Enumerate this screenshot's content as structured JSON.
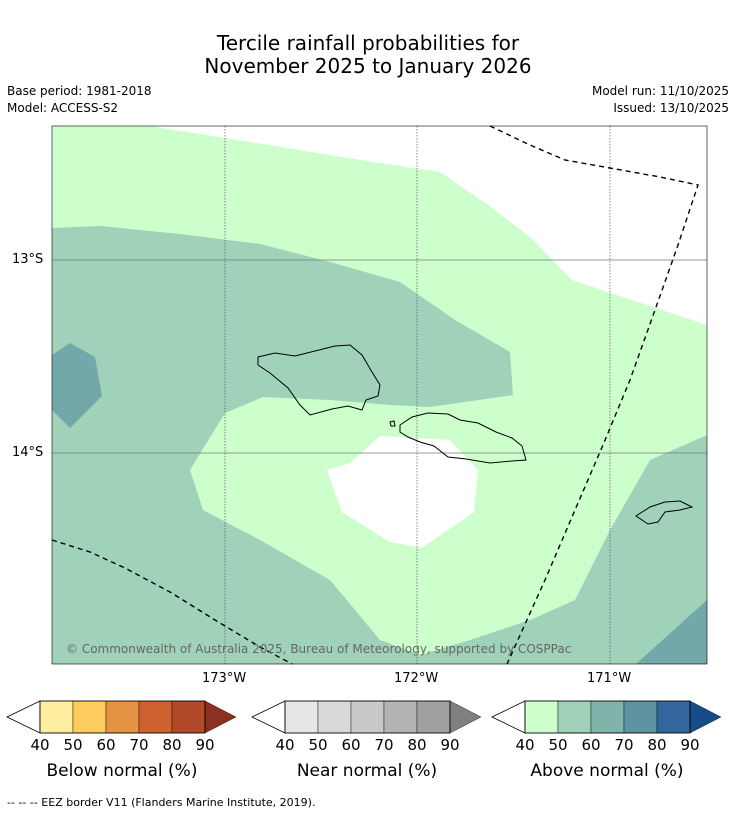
{
  "title_line1": "Tercile rainfall probabilities for",
  "title_line2": "November 2025 to January 2026",
  "base_period": "Base period: 1981-2018",
  "model": "Model: ACCESS-S2",
  "model_run": "Model run: 11/10/2025",
  "issued": "Issued: 13/10/2025",
  "lat_labels": [
    "13°S",
    "14°S"
  ],
  "lon_labels": [
    "173°W",
    "172°W",
    "171°W"
  ],
  "copyright": "© Commonwealth of Australia 2025, Bureau of Meteorology, supported by COSPPac",
  "colorbars": [
    {
      "title": "Below normal (%)",
      "ticks": [
        "40",
        "50",
        "60",
        "70",
        "80",
        "90"
      ],
      "colors": [
        "#ffeda0",
        "#fecc5c",
        "#e39343",
        "#cf6030",
        "#b04a28",
        "#8c3020"
      ]
    },
    {
      "title": "Near normal (%)",
      "ticks": [
        "40",
        "50",
        "60",
        "70",
        "80",
        "90"
      ],
      "colors": [
        "#e6e6e6",
        "#d9d9d9",
        "#c8c8c8",
        "#b4b4b4",
        "#a0a0a0",
        "#808080"
      ]
    },
    {
      "title": "Above normal (%)",
      "ticks": [
        "40",
        "50",
        "60",
        "70",
        "80",
        "90"
      ],
      "colors": [
        "#ccffcc",
        "#a0d2ba",
        "#80b4aa",
        "#5f93a2",
        "#33669a",
        "#164d88"
      ]
    }
  ],
  "footnote": "--  --  -- EEZ border V11 (Flanders Marine Institute, 2019).",
  "map_colors": {
    "above_40": "#ccffcc",
    "above_50": "#a0d2ba",
    "above_60": "#73a8aa",
    "no_signal": "#ffffff"
  }
}
